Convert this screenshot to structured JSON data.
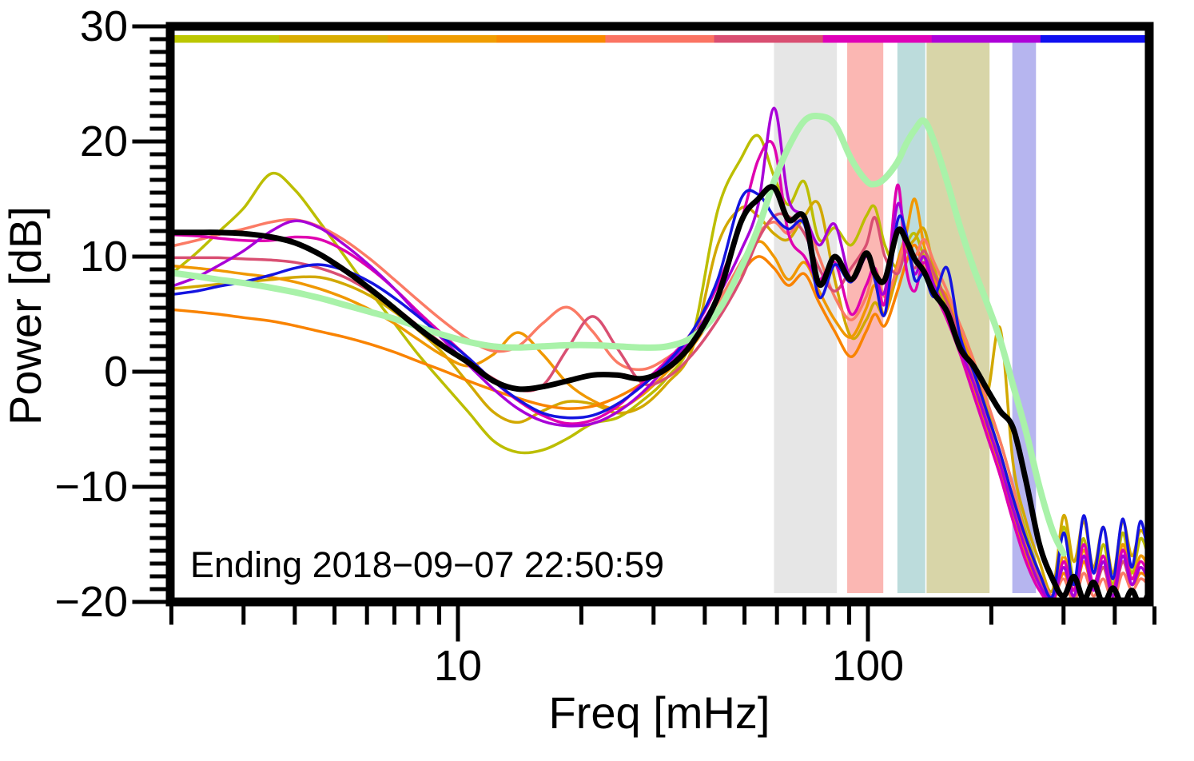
{
  "chart_data": {
    "type": "line",
    "title": "",
    "xlabel": "Freq [mHz]",
    "ylabel": "Power [dB]",
    "annotation": "Ending 2018−09−07 22:50:59",
    "xscale": "log",
    "xlim": [
      2,
      483
    ],
    "ylim": [
      -20,
      30
    ],
    "x_major_ticks": [
      10,
      100
    ],
    "x_major_tick_labels": [
      "10",
      "100"
    ],
    "x_minor_ticks": [
      2,
      3,
      4,
      5,
      6,
      7,
      8,
      9,
      20,
      30,
      40,
      50,
      60,
      70,
      80,
      90,
      200,
      300,
      400,
      500
    ],
    "y_major_ticks": [
      30,
      20,
      10,
      0,
      -10,
      -20
    ],
    "y_major_tick_labels": [
      "30",
      "20",
      "10",
      "0",
      "−10",
      "−20"
    ],
    "y_minor_subdivisions": 9,
    "grid": false,
    "legend": "none",
    "background": "#ffffff",
    "frame_color": "#000000",
    "top_colorbar_segments": [
      "#bcc700",
      "#d9ad00",
      "#f09d00",
      "#f98a00",
      "#fb7463",
      "#d94f72",
      "#df00b8",
      "#ae00d8",
      "#1010f0"
    ],
    "shaded_bands": [
      {
        "x0_mHz": 59,
        "x1_mHz": 84,
        "color": "#e6e6e6"
      },
      {
        "x0_mHz": 89,
        "x1_mHz": 109,
        "color": "#fbb7b3"
      },
      {
        "x0_mHz": 118,
        "x1_mHz": 138,
        "color": "#bcdcdc"
      },
      {
        "x0_mHz": 139,
        "x1_mHz": 198,
        "color": "#d8d5a8"
      },
      {
        "x0_mHz": 225,
        "x1_mHz": 257,
        "color": "#b6b5ef"
      }
    ],
    "x_mHz": [
      2.0,
      2.3,
      2.6,
      3.0,
      3.5,
      4.0,
      4.6,
      5.3,
      6.1,
      7.0,
      8.0,
      9.2,
      10.6,
      12.2,
      14.0,
      16.1,
      18.5,
      21.3,
      24.5,
      28.2,
      32.4,
      37.3,
      43.0,
      49.0,
      54.0,
      59.0,
      64.0,
      70.0,
      76.0,
      83.0,
      91.0,
      99.0,
      104.0,
      110.0,
      118.0,
      124.0,
      130.0,
      137.0,
      145.0,
      156.0,
      168.0,
      181.0,
      195.0,
      210.0,
      226.0,
      243.0,
      262.0,
      282.0,
      300.0,
      318.0,
      336.0,
      355.0,
      375.0,
      396.0,
      418.0,
      440.0,
      462.0,
      483.0
    ],
    "series": [
      {
        "name": "s1-yellow-green",
        "color": "#bcbe00",
        "width": 3.5,
        "values": [
          8.5,
          10.3,
          12.1,
          14.2,
          17.2,
          15.8,
          13.0,
          10.0,
          7.0,
          4.2,
          1.5,
          -1.0,
          -3.5,
          -6.0,
          -7.0,
          -6.8,
          -5.8,
          -4.5,
          -4.0,
          -2.5,
          -0.5,
          3.0,
          14.0,
          18.5,
          20.5,
          17.0,
          14.5,
          16.5,
          11.5,
          12.5,
          11.0,
          13.5,
          14.3,
          11.0,
          9.0,
          11.0,
          12.0,
          10.0,
          8.0,
          5.5,
          3.0,
          0.0,
          -3.0,
          -6.0,
          -10.0,
          -14.0,
          -17.5,
          -19.5,
          -13.5,
          -18.0,
          -14.5,
          -19.0,
          -15.0,
          -18.5,
          -14.0,
          -17.5,
          -14.5,
          -16.0
        ]
      },
      {
        "name": "s2-gold",
        "color": "#d2a800",
        "width": 3.5,
        "values": [
          7.2,
          7.4,
          7.6,
          7.8,
          8.0,
          8.2,
          8.2,
          7.6,
          6.6,
          5.2,
          3.6,
          1.6,
          -1.0,
          -3.5,
          -4.4,
          -3.4,
          -2.6,
          -2.8,
          -3.6,
          -3.0,
          -1.0,
          2.0,
          11.0,
          14.2,
          13.5,
          12.0,
          11.5,
          13.5,
          14.5,
          8.0,
          3.0,
          4.5,
          6.0,
          5.0,
          8.5,
          10.5,
          11.5,
          12.4,
          9.0,
          6.0,
          4.0,
          1.0,
          -2.0,
          3.8,
          -8.0,
          -13.0,
          -16.5,
          -19.0,
          -12.5,
          -16.5,
          -13.0,
          -17.0,
          -13.5,
          -17.5,
          -13.0,
          -16.0,
          -13.8,
          -15.0
        ]
      },
      {
        "name": "s3-amber",
        "color": "#f09800",
        "width": 3.5,
        "values": [
          9.2,
          9.0,
          8.8,
          8.5,
          8.2,
          7.8,
          7.2,
          6.4,
          5.4,
          4.2,
          2.8,
          1.4,
          0.5,
          1.5,
          3.4,
          1.5,
          -1.0,
          -2.5,
          -3.2,
          -2.0,
          0.0,
          2.2,
          5.5,
          9.0,
          11.3,
          10.0,
          8.0,
          9.5,
          7.0,
          4.5,
          3.0,
          5.5,
          7.5,
          5.0,
          9.5,
          12.0,
          15.0,
          11.0,
          8.0,
          6.5,
          3.5,
          0.5,
          -3.5,
          -7.0,
          -11.0,
          -15.0,
          -18.0,
          -19.8,
          -16.0,
          -19.0,
          -15.5,
          -18.5,
          -16.0,
          -19.0,
          -15.0,
          -18.0,
          -16.0,
          -17.0
        ]
      },
      {
        "name": "s4-orange",
        "color": "#f98300",
        "width": 3.5,
        "values": [
          5.4,
          5.2,
          5.0,
          4.7,
          4.4,
          4.0,
          3.5,
          3.0,
          2.4,
          1.7,
          0.9,
          0.1,
          -0.8,
          -1.6,
          -2.3,
          -2.9,
          -3.2,
          -3.0,
          -2.2,
          -1.0,
          0.5,
          2.5,
          5.5,
          8.5,
          10.0,
          9.0,
          7.5,
          8.5,
          6.0,
          3.5,
          1.3,
          3.5,
          5.0,
          4.0,
          7.0,
          9.5,
          11.0,
          9.0,
          7.5,
          5.0,
          2.0,
          -1.5,
          -5.0,
          -8.5,
          -12.5,
          -16.0,
          -18.5,
          -20.0,
          -17.5,
          -19.5,
          -16.5,
          -19.0,
          -17.0,
          -19.5,
          -16.5,
          -18.5,
          -17.5,
          -18.0
        ]
      },
      {
        "name": "s5-salmon",
        "color": "#fb7b65",
        "width": 3.5,
        "values": [
          10.9,
          11.4,
          11.9,
          12.4,
          13.0,
          13.2,
          12.6,
          11.4,
          9.8,
          8.0,
          6.2,
          4.4,
          2.8,
          1.8,
          2.2,
          4.2,
          5.6,
          3.5,
          0.8,
          0.2,
          1.2,
          3.0,
          6.0,
          9.5,
          12.0,
          13.0,
          12.0,
          13.3,
          10.0,
          6.5,
          4.5,
          6.5,
          9.0,
          6.5,
          9.0,
          11.5,
          10.0,
          11.5,
          9.5,
          7.0,
          4.0,
          1.0,
          -2.5,
          -6.0,
          -10.0,
          -14.5,
          -17.5,
          -19.5,
          -18.0,
          -20.0,
          -17.5,
          -19.5,
          -18.0,
          -20.0,
          -17.5,
          -19.0,
          -18.0,
          -18.5
        ]
      },
      {
        "name": "s6-rose",
        "color": "#d94f72",
        "width": 3.5,
        "values": [
          9.9,
          9.9,
          9.9,
          9.8,
          9.7,
          9.5,
          9.0,
          8.2,
          7.0,
          5.6,
          4.0,
          2.4,
          0.8,
          -0.6,
          -1.6,
          -1.2,
          2.0,
          4.8,
          2.0,
          -1.0,
          -0.5,
          1.5,
          4.5,
          8.0,
          11.5,
          13.5,
          13.5,
          12.0,
          9.0,
          7.0,
          9.0,
          11.0,
          13.4,
          10.0,
          8.5,
          10.5,
          9.0,
          10.5,
          8.5,
          6.0,
          3.0,
          -0.5,
          -4.0,
          -7.5,
          -11.5,
          -15.5,
          -18.0,
          -19.8,
          -17.0,
          -19.5,
          -16.0,
          -19.0,
          -17.0,
          -19.5,
          -16.5,
          -18.5,
          -17.0,
          -18.0
        ]
      },
      {
        "name": "s7-magenta",
        "color": "#df00b0",
        "width": 3.5,
        "values": [
          11.9,
          11.8,
          11.6,
          11.4,
          11.4,
          11.7,
          11.5,
          10.5,
          9.0,
          7.2,
          5.2,
          3.2,
          1.2,
          -0.8,
          -2.5,
          -3.8,
          -4.5,
          -4.2,
          -3.0,
          -1.0,
          1.0,
          3.5,
          7.5,
          13.0,
          18.4,
          19.6,
          12.0,
          10.0,
          8.0,
          9.5,
          5.0,
          7.5,
          9.0,
          6.0,
          16.2,
          9.0,
          7.0,
          9.5,
          7.0,
          4.5,
          1.5,
          -2.0,
          -5.5,
          -9.0,
          -13.0,
          -16.5,
          -19.0,
          -20.0,
          -16.5,
          -19.0,
          -15.0,
          -18.5,
          -16.0,
          -19.0,
          -15.5,
          -18.0,
          -16.5,
          -17.5
        ]
      },
      {
        "name": "s8-purple",
        "color": "#a800d8",
        "width": 3.5,
        "values": [
          7.4,
          8.2,
          9.2,
          10.5,
          12.2,
          13.1,
          12.5,
          11.0,
          9.2,
          7.2,
          5.0,
          2.8,
          0.6,
          -1.5,
          -3.2,
          -4.3,
          -4.7,
          -4.5,
          -3.5,
          -1.8,
          0.5,
          3.0,
          6.5,
          10.5,
          14.5,
          22.9,
          15.0,
          13.5,
          11.0,
          12.8,
          8.0,
          10.0,
          8.5,
          7.0,
          14.5,
          11.5,
          8.5,
          10.0,
          7.5,
          5.0,
          2.0,
          -1.0,
          -4.5,
          -8.0,
          -12.0,
          -15.5,
          -18.5,
          -19.8,
          -17.0,
          -19.5,
          -16.0,
          -19.0,
          -16.5,
          -19.5,
          -16.0,
          -18.5,
          -17.0,
          -18.0
        ]
      },
      {
        "name": "s9-blue",
        "color": "#1414e0",
        "width": 3.5,
        "values": [
          6.7,
          7.0,
          7.4,
          7.8,
          8.4,
          9.0,
          9.3,
          8.8,
          7.8,
          6.4,
          4.8,
          3.0,
          1.2,
          -0.8,
          -2.4,
          -3.6,
          -4.0,
          -3.8,
          -2.8,
          -1.2,
          0.8,
          3.5,
          8.0,
          15.0,
          15.4,
          13.5,
          12.4,
          12.8,
          6.5,
          9.3,
          7.8,
          10.3,
          8.0,
          5.0,
          13.1,
          12.0,
          8.0,
          8.5,
          6.5,
          9.0,
          3.0,
          0.0,
          -3.5,
          -7.0,
          -11.0,
          -14.5,
          -17.5,
          -19.5,
          -14.0,
          -18.5,
          -12.5,
          -17.5,
          -13.5,
          -18.0,
          -12.8,
          -17.0,
          -13.0,
          -16.0
        ]
      },
      {
        "name": "reference-light-green",
        "color": "#a9f2a9",
        "width": 8,
        "values": [
          8.6,
          8.3,
          8.0,
          7.7,
          7.3,
          6.9,
          6.4,
          5.8,
          5.2,
          4.6,
          3.9,
          3.2,
          2.6,
          2.2,
          2.1,
          2.2,
          2.3,
          2.3,
          2.2,
          2.1,
          2.2,
          3.0,
          5.2,
          9.0,
          12.5,
          16.5,
          19.5,
          21.8,
          22.2,
          21.5,
          18.5,
          16.6,
          16.3,
          16.8,
          18.2,
          19.8,
          21.0,
          21.8,
          20.0,
          16.5,
          12.5,
          9.0,
          6.0,
          2.8,
          -1.2,
          -5.2,
          -10.0,
          -13.8,
          -15.8,
          null,
          null,
          null,
          null,
          null,
          null,
          null,
          null,
          null
        ]
      },
      {
        "name": "mean-black",
        "color": "#000000",
        "width": 7,
        "values": [
          12.1,
          12.1,
          12.1,
          12.0,
          11.7,
          11.2,
          10.2,
          8.8,
          7.2,
          5.5,
          3.8,
          2.2,
          0.8,
          -0.8,
          -1.5,
          -1.3,
          -0.8,
          -0.3,
          -0.3,
          -0.6,
          0.3,
          2.5,
          6.5,
          13.0,
          15.0,
          16.0,
          13.2,
          13.4,
          7.6,
          10.0,
          8.0,
          10.3,
          8.5,
          8.0,
          12.2,
          11.4,
          9.8,
          8.7,
          6.8,
          5.2,
          2.0,
          0.5,
          -1.5,
          -3.4,
          -4.9,
          -9.5,
          -15.0,
          -18.0,
          -19.5,
          -17.8,
          -19.8,
          -18.3,
          -20.2,
          -18.8,
          -20.3,
          -19.0,
          -20.4,
          -19.3
        ]
      }
    ]
  }
}
